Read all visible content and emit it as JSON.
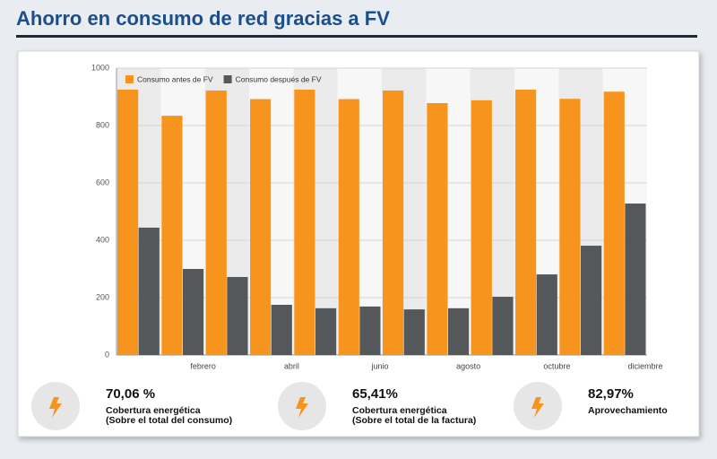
{
  "header": {
    "title": "Ahorro en consumo de red gracias a FV"
  },
  "chart_data": {
    "type": "bar",
    "categories": [
      null,
      "febrero",
      null,
      "abril",
      null,
      "junio",
      null,
      "agosto",
      null,
      "octubre",
      null,
      "diciembre"
    ],
    "series": [
      {
        "name": "Consumo antes de FV",
        "color": "#f7941d",
        "values": [
          925,
          834,
          922,
          892,
          925,
          892,
          922,
          878,
          888,
          925,
          893,
          918
        ]
      },
      {
        "name": "Consumo después de FV",
        "color": "#54585a",
        "values": [
          444,
          300,
          272,
          175,
          163,
          169,
          159,
          163,
          203,
          281,
          381,
          528
        ]
      }
    ],
    "ylim": [
      0,
      1000
    ],
    "yticks": [
      0,
      200,
      400,
      600,
      800,
      1000
    ],
    "grid": true,
    "legend": "top-left"
  },
  "stats": [
    {
      "value": "70,06 %",
      "label": [
        "Cobertura energética",
        "(Sobre el total del consumo)"
      ]
    },
    {
      "value": "65,41%",
      "label": [
        "Cobertura energética",
        "(Sobre el total de la factura)"
      ]
    },
    {
      "value": "82,97%",
      "label": [
        "Aprovechamiento"
      ]
    }
  ]
}
